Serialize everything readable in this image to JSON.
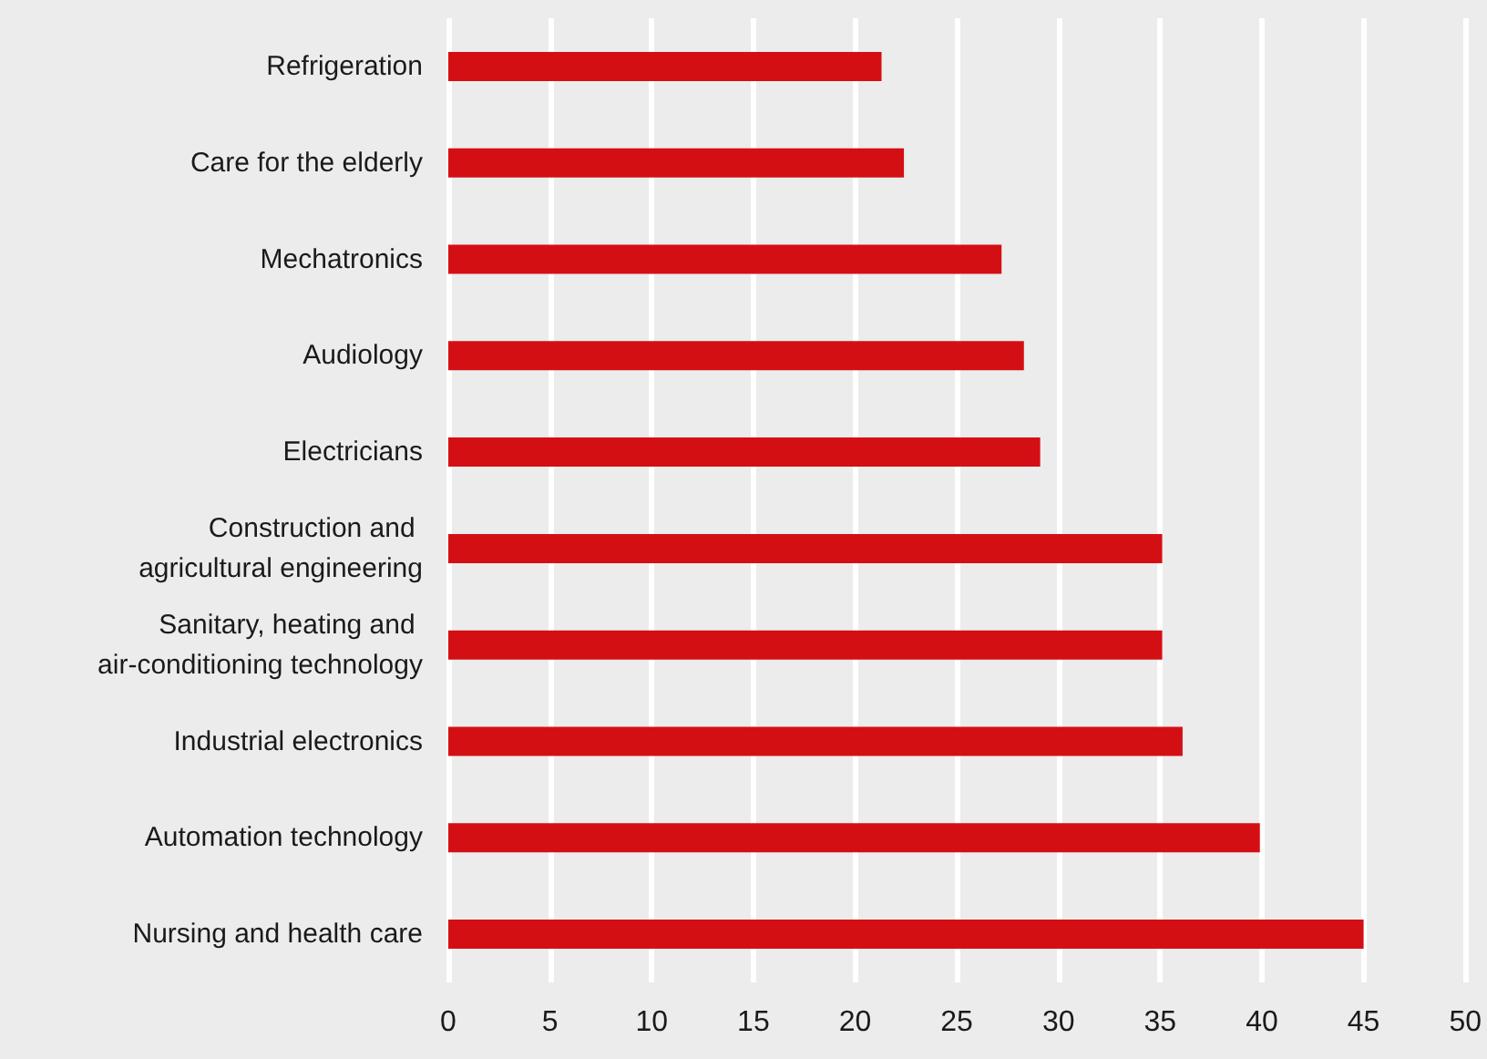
{
  "chart_data": {
    "type": "bar",
    "orientation": "horizontal",
    "categories": [
      "Refrigeration",
      "Care for the elderly",
      "Mechatronics",
      "Audiology",
      "Electricians",
      "Construction and agricultural engineering",
      "Sanitary, heating and air-conditioning technology",
      "Industrial electronics",
      "Automation technology",
      "Nursing and health care"
    ],
    "values": [
      21.3,
      22.4,
      27.2,
      28.3,
      29.1,
      35.1,
      35.1,
      36.1,
      39.9,
      45
    ],
    "color": "#d40f14",
    "xlim": [
      0,
      50
    ],
    "xticks": [
      0,
      5,
      10,
      15,
      20,
      25,
      30,
      35,
      40,
      45,
      50
    ],
    "grid": "x"
  }
}
